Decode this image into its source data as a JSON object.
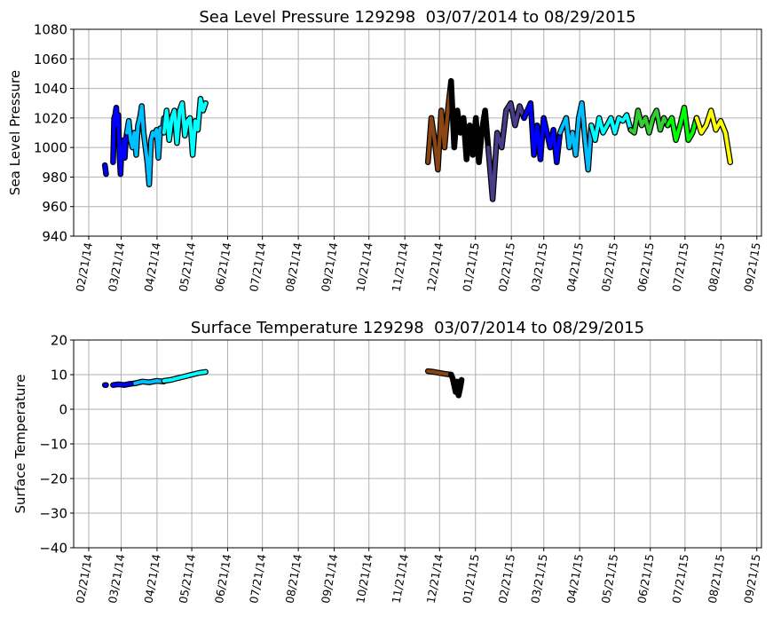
{
  "chart_data": [
    {
      "type": "line",
      "title": "Sea Level Pressure 129298  03/07/2014 to 08/29/2015",
      "xlabel": "",
      "ylabel": "Sea Level Pressure",
      "x_units": "days since 02/21/14",
      "xlim": [
        -13,
        581
      ],
      "ylim": [
        940,
        1080
      ],
      "yticks": [
        940,
        960,
        980,
        1000,
        1020,
        1040,
        1060,
        1080
      ],
      "xtick_days": [
        0,
        28,
        59,
        89,
        120,
        150,
        181,
        212,
        242,
        273,
        303,
        334,
        365,
        393,
        424,
        454,
        485,
        515,
        546,
        577
      ],
      "xtick_labels": [
        "02/21/14",
        "03/21/14",
        "04/21/14",
        "05/21/14",
        "06/21/14",
        "07/21/14",
        "08/21/14",
        "09/21/14",
        "10/21/14",
        "11/21/14",
        "12/21/14",
        "01/21/15",
        "02/21/15",
        "03/21/15",
        "04/21/15",
        "05/21/15",
        "06/21/15",
        "07/21/15",
        "08/21/15",
        "09/21/15"
      ],
      "grid": true,
      "segments": [
        {
          "color": "#0000ff",
          "start": 14,
          "end": 15,
          "values": [
            988,
            982
          ]
        },
        {
          "color": "#0000ff",
          "start": 21,
          "end": 33,
          "values": [
            990,
            1020,
            1022,
            1027,
            1015,
            1022,
            995,
            982,
            1000,
            995,
            1005,
            993,
            1005,
            1010
          ]
        },
        {
          "color": "#00bfff",
          "start": 33,
          "end": 65,
          "values": [
            1010,
            1018,
            1005,
            1000,
            1010,
            995,
            1015,
            1020,
            1028,
            1010,
            1000,
            990,
            975,
            1005,
            1010,
            1008,
            1012,
            993,
            1013,
            1010,
            1020
          ]
        },
        {
          "color": "#00ffff",
          "start": 65,
          "end": 101,
          "values": [
            1010,
            1025,
            1005,
            1020,
            1025,
            1003,
            1025,
            1030,
            1008,
            1018,
            1020,
            995,
            1018,
            1012,
            1033,
            1025,
            1030
          ]
        },
        {
          "color": "#8b4513",
          "start": 293,
          "end": 313,
          "values": [
            990,
            1020,
            1005,
            985,
            1025,
            1000,
            1025,
            1045
          ]
        },
        {
          "color": "#000000",
          "start": 313,
          "end": 345,
          "values": [
            1045,
            1000,
            1025,
            1010,
            1020,
            992,
            1015,
            995,
            1020,
            990,
            1012,
            1025,
            1000
          ]
        },
        {
          "color": "#483d8b",
          "start": 345,
          "end": 376,
          "values": [
            1000,
            965,
            1010,
            1000,
            1025,
            1030,
            1015,
            1028,
            1020
          ]
        },
        {
          "color": "#0000ff",
          "start": 376,
          "end": 407,
          "values": [
            1020,
            1025,
            1030,
            995,
            1015,
            992,
            1020,
            1010,
            1000,
            1012,
            990,
            1010
          ]
        },
        {
          "color": "#00bfff",
          "start": 407,
          "end": 434,
          "values": [
            1010,
            1015,
            1020,
            1000,
            1010,
            995,
            1020,
            1030,
            1005,
            985,
            1015
          ]
        },
        {
          "color": "#00ffff",
          "start": 434,
          "end": 468,
          "values": [
            1015,
            1005,
            1020,
            1010,
            1015,
            1020,
            1010,
            1020,
            1018,
            1022,
            1012
          ]
        },
        {
          "color": "#32cd32",
          "start": 468,
          "end": 500,
          "values": [
            1012,
            1010,
            1025,
            1015,
            1020,
            1010,
            1020,
            1025,
            1012,
            1020,
            1015
          ]
        },
        {
          "color": "#00ff00",
          "start": 500,
          "end": 525,
          "values": [
            1015,
            1020,
            1005,
            1015,
            1027,
            1005,
            1010,
            1020
          ]
        },
        {
          "color": "#ffff00",
          "start": 525,
          "end": 554,
          "values": [
            1020,
            1010,
            1015,
            1025,
            1012,
            1018,
            1010,
            990
          ]
        }
      ]
    },
    {
      "type": "line",
      "title": "Surface Temperature 129298  03/07/2014 to 08/29/2015",
      "xlabel": "",
      "ylabel": "Surface Temperature",
      "x_units": "days since 02/21/14",
      "xlim": [
        -13,
        581
      ],
      "ylim": [
        -40,
        20
      ],
      "yticks": [
        -40,
        -30,
        -20,
        -10,
        0,
        10,
        20
      ],
      "ytick_labels": [
        "−40",
        "−30",
        "−20",
        "−10",
        "0",
        "10",
        "20"
      ],
      "xtick_days": [
        0,
        28,
        59,
        89,
        120,
        150,
        181,
        212,
        242,
        273,
        303,
        334,
        365,
        393,
        424,
        454,
        485,
        515,
        546,
        577
      ],
      "xtick_labels": [
        "02/21/14",
        "03/21/14",
        "04/21/14",
        "05/21/14",
        "06/21/14",
        "07/21/14",
        "08/21/14",
        "09/21/14",
        "10/21/14",
        "11/21/14",
        "12/21/14",
        "01/21/15",
        "02/21/15",
        "03/21/15",
        "04/21/15",
        "05/21/15",
        "06/21/15",
        "07/21/15",
        "08/21/15",
        "09/21/15"
      ],
      "grid": true,
      "segments": [
        {
          "color": "#0000ff",
          "start": 14,
          "end": 15,
          "values": [
            7,
            7
          ]
        },
        {
          "color": "#0000ff",
          "start": 21,
          "end": 40,
          "values": [
            7,
            7.2,
            7,
            7.3,
            7.5
          ]
        },
        {
          "color": "#00bfff",
          "start": 40,
          "end": 65,
          "values": [
            7.5,
            8,
            7.8,
            8.2,
            8
          ]
        },
        {
          "color": "#00ffff",
          "start": 65,
          "end": 101,
          "values": [
            8.2,
            8.5,
            9,
            9.5,
            10,
            10.5,
            10.8
          ]
        },
        {
          "color": "#8b4513",
          "start": 293,
          "end": 313,
          "values": [
            11,
            10.8,
            10.5,
            10.2,
            10
          ]
        },
        {
          "color": "#000000",
          "start": 313,
          "end": 322,
          "values": [
            10,
            9,
            7,
            5,
            8,
            4,
            6,
            8.5
          ]
        }
      ]
    }
  ]
}
